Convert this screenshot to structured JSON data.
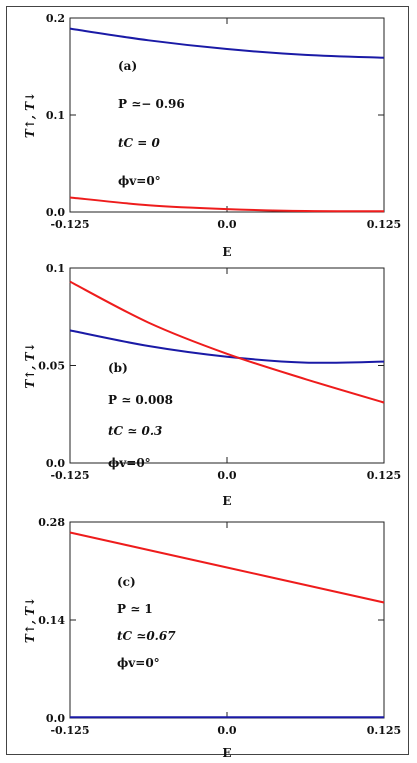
{
  "chart_data": [
    {
      "type": "line",
      "panel": "(a)",
      "xlabel": "E",
      "ylabel": "T↑, T↓",
      "xlim": [
        -0.125,
        0.125
      ],
      "ylim": [
        0.0,
        0.2
      ],
      "xticks": [
        "-0.125",
        "0.0",
        "0.125"
      ],
      "yticks": [
        "0.0",
        "0.1",
        "0.2"
      ],
      "yticks_values": [
        0.0,
        0.1,
        0.2
      ],
      "annotations": [
        "(a)",
        "P ≃− 0.96",
        "tC = 0",
        "ϕv=0°"
      ],
      "series": [
        {
          "color": "#1a1aa6",
          "x": [
            -0.125,
            -0.0625,
            0.0,
            0.0625,
            0.125
          ],
          "y": [
            0.189,
            0.177,
            0.168,
            0.162,
            0.159
          ]
        },
        {
          "color": "#ee1c1c",
          "x": [
            -0.125,
            -0.0625,
            0.0,
            0.0625,
            0.125
          ],
          "y": [
            0.015,
            0.007,
            0.003,
            0.001,
            0.0008
          ]
        }
      ]
    },
    {
      "type": "line",
      "panel": "(b)",
      "xlabel": "E",
      "ylabel": "T↑, T↓",
      "xlim": [
        -0.125,
        0.125
      ],
      "ylim": [
        0.0,
        0.1
      ],
      "xticks": [
        "-0.125",
        "0.0",
        "0.125"
      ],
      "yticks": [
        "0.0",
        "0.05",
        "0.1"
      ],
      "yticks_values": [
        0.0,
        0.05,
        0.1
      ],
      "annotations": [
        "(b)",
        "P ≃ 0.008",
        "tC ≃ 0.3",
        "ϕv=0°"
      ],
      "series": [
        {
          "color": "#1a1aa6",
          "x": [
            -0.125,
            -0.0625,
            0.0,
            0.0625,
            0.125
          ],
          "y": [
            0.068,
            0.06,
            0.0545,
            0.0515,
            0.052
          ]
        },
        {
          "color": "#ee1c1c",
          "x": [
            -0.125,
            -0.0625,
            0.0,
            0.0625,
            0.125
          ],
          "y": [
            0.093,
            0.072,
            0.056,
            0.043,
            0.031
          ]
        }
      ]
    },
    {
      "type": "line",
      "panel": "(c)",
      "xlabel": "E",
      "ylabel": "T↑, T↓",
      "xlim": [
        -0.125,
        0.125
      ],
      "ylim": [
        0.0,
        0.28
      ],
      "xticks": [
        "-0.125",
        "0.0",
        "0.125"
      ],
      "yticks": [
        "0.0",
        "0.14",
        "0.28"
      ],
      "yticks_values": [
        0.0,
        0.14,
        0.28
      ],
      "annotations": [
        "(c)",
        "P ≃ 1",
        "tC ≃0.67",
        "ϕv=0°"
      ],
      "series": [
        {
          "color": "#ee1c1c",
          "x": [
            -0.125,
            -0.0625,
            0.0,
            0.0625,
            0.125
          ],
          "y": [
            0.265,
            0.24,
            0.215,
            0.19,
            0.165
          ]
        },
        {
          "color": "#1a1aa6",
          "x": [
            -0.125,
            -0.0625,
            0.0,
            0.0625,
            0.125
          ],
          "y": [
            0.001,
            0.001,
            0.001,
            0.001,
            0.001
          ]
        }
      ]
    }
  ]
}
